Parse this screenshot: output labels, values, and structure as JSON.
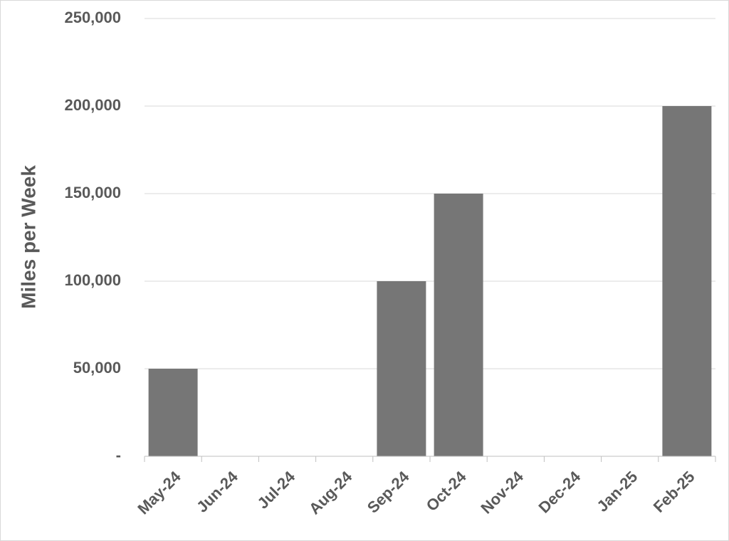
{
  "chart_data": {
    "type": "bar",
    "y_label": "Miles per Week",
    "categories": [
      "May-24",
      "Jun-24",
      "Jul-24",
      "Aug-24",
      "Sep-24",
      "Oct-24",
      "Nov-24",
      "Dec-24",
      "Jan-25",
      "Feb-25"
    ],
    "values": [
      50000,
      0,
      0,
      0,
      100000,
      150000,
      0,
      0,
      0,
      200000
    ],
    "color": "#767676",
    "ylim": [
      0,
      250000
    ],
    "yticks": [
      {
        "value": 0,
        "label": "-"
      },
      {
        "value": 50000,
        "label": "50,000"
      },
      {
        "value": 100000,
        "label": "100,000"
      },
      {
        "value": 150000,
        "label": "150,000"
      },
      {
        "value": 200000,
        "label": "200,000"
      },
      {
        "value": 250000,
        "label": "250,000"
      }
    ],
    "grid": true
  }
}
